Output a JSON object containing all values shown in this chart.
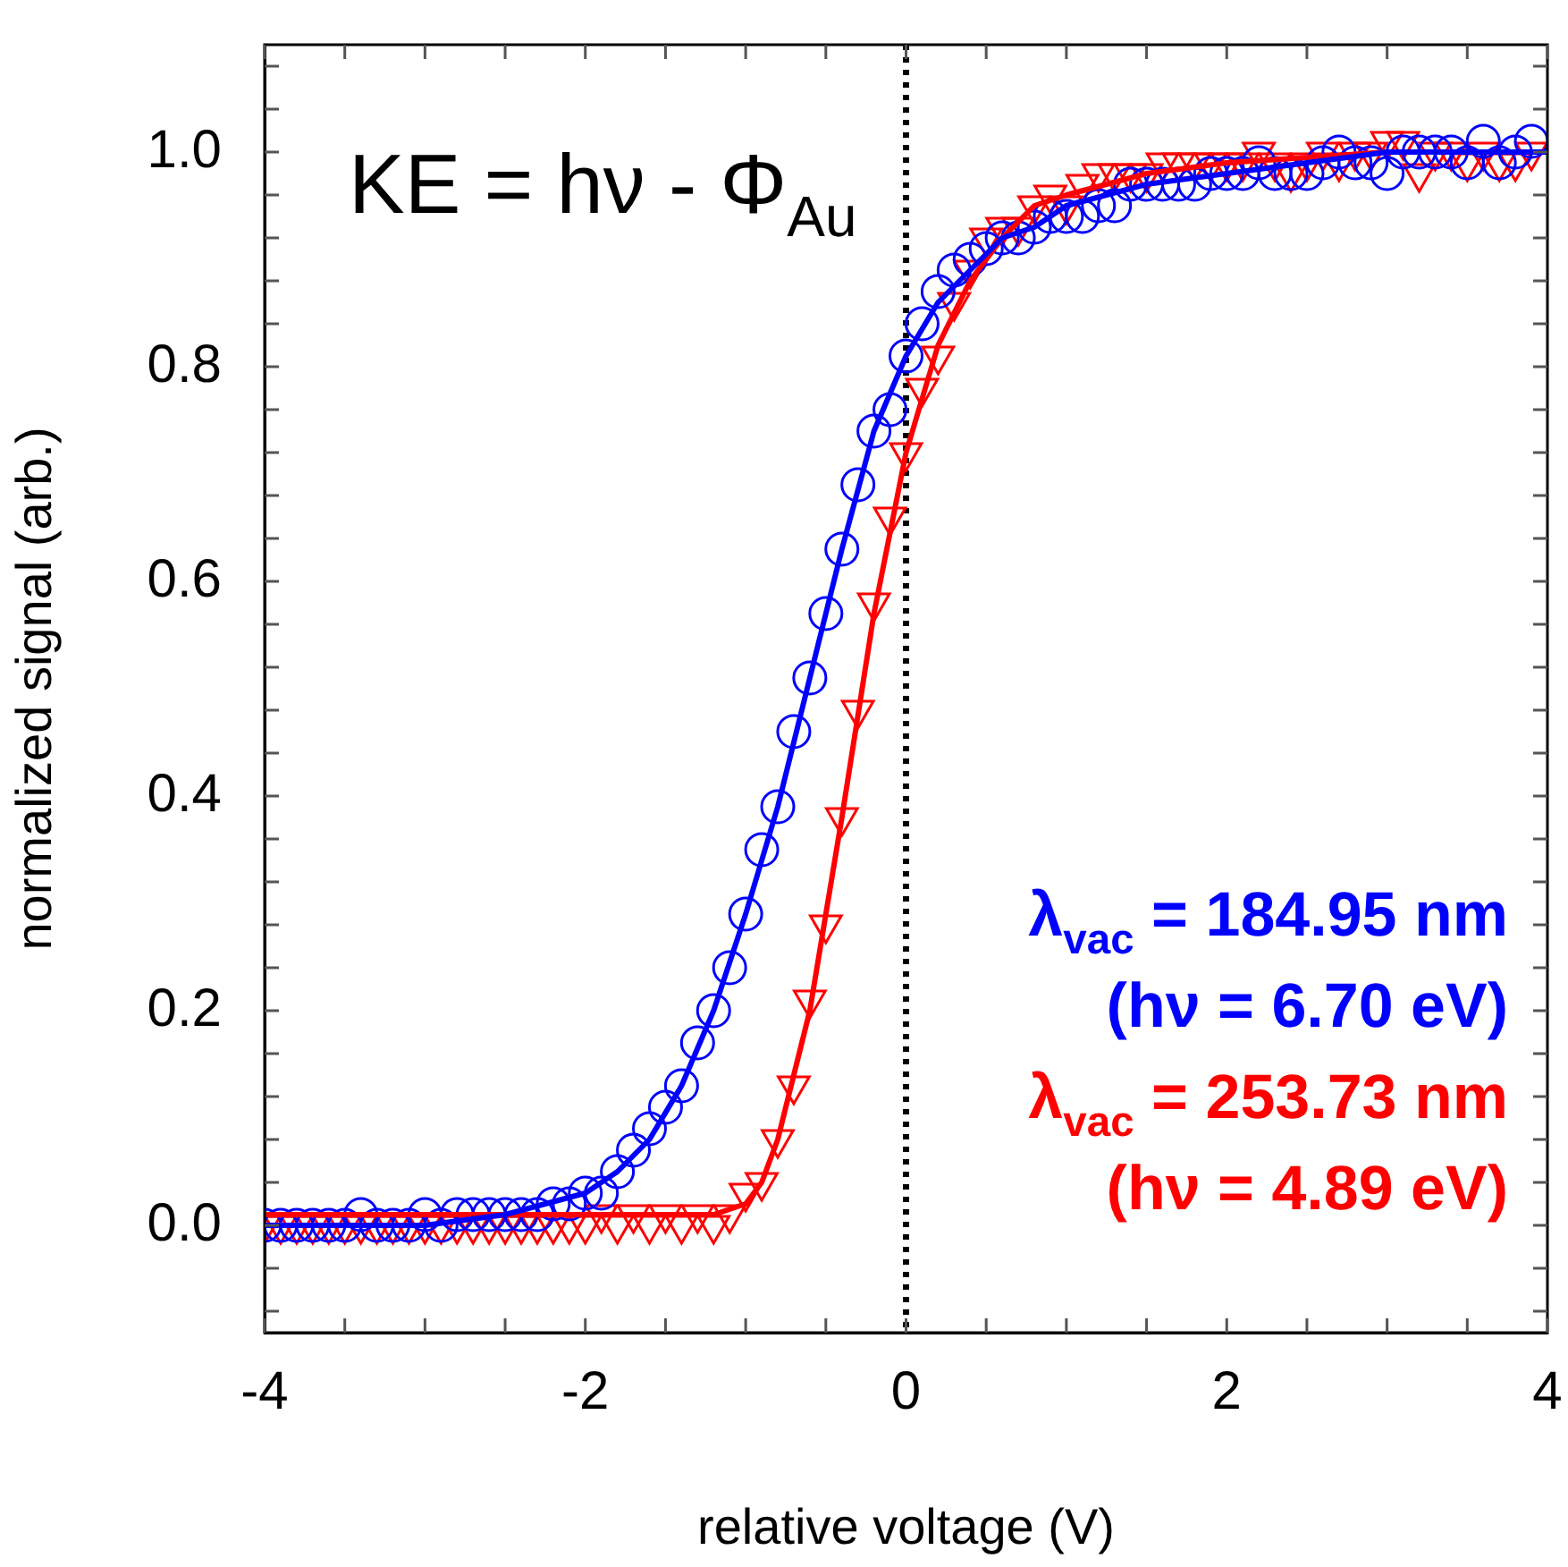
{
  "chart_data": {
    "type": "scatter",
    "xlabel": "relative voltage (V)",
    "ylabel": "normalized signal (arb.)",
    "annotations": [
      "KE = hν - Φ$_{Au}$"
    ],
    "xlim": [
      -4,
      4
    ],
    "xticks": [
      -4,
      {
        "value": -3.5,
        "label": null
      },
      {
        "value": -3,
        "label": null
      },
      {
        "value": -2.5,
        "label": null
      },
      -2,
      {
        "value": -1.5,
        "label": null
      },
      {
        "value": -1,
        "label": null
      },
      {
        "value": -0.5,
        "label": null
      },
      0,
      {
        "value": 0.5,
        "label": null
      },
      {
        "value": 1,
        "label": null
      },
      {
        "value": 1.5,
        "label": null
      },
      2,
      {
        "value": 2.5,
        "label": null
      },
      {
        "value": 3,
        "label": null
      },
      {
        "value": 3.5,
        "label": null
      },
      4
    ],
    "ylim": [
      -0.1,
      1.1
    ],
    "yticks": [
      {
        "value": -0.08,
        "label": null
      },
      {
        "value": -0.04,
        "label": null
      },
      {
        "value": 0,
        "label": "0.0"
      },
      {
        "value": 0.04,
        "label": null
      },
      {
        "value": 0.08,
        "label": null
      },
      {
        "value": 0.12,
        "label": null
      },
      {
        "value": 0.16,
        "label": null
      },
      0.2,
      {
        "value": 0.24,
        "label": null
      },
      {
        "value": 0.28,
        "label": null
      },
      {
        "value": 0.32,
        "label": null
      },
      {
        "value": 0.36,
        "label": null
      },
      0.4,
      {
        "value": 0.44,
        "label": null
      },
      {
        "value": 0.48,
        "label": null
      },
      {
        "value": 0.52,
        "label": null
      },
      {
        "value": 0.56,
        "label": null
      },
      0.6,
      {
        "value": 0.64,
        "label": null
      },
      {
        "value": 0.68,
        "label": null
      },
      {
        "value": 0.72,
        "label": null
      },
      {
        "value": 0.76,
        "label": null
      },
      0.8,
      {
        "value": 0.84,
        "label": null
      },
      {
        "value": 0.88,
        "label": null
      },
      {
        "value": 0.92,
        "label": null
      },
      {
        "value": 0.96,
        "label": null
      },
      {
        "value": 1,
        "label": "1.0"
      },
      {
        "value": 1.04,
        "label": null
      },
      {
        "value": 1.08,
        "label": null
      }
    ],
    "grid": false,
    "ref_lines": [
      {
        "axis": "x",
        "value": 0,
        "color": "#000000",
        "line_style": "dotted"
      }
    ],
    "series": [
      {
        "name": "λ$_{vac}$ = 184.95 nm (hν = 6.70 eV)",
        "type": "scatter",
        "marker": "circle",
        "color": "#0000ff",
        "x": [
          -4,
          -3.9,
          -3.8,
          -3.7,
          -3.6,
          -3.5,
          -3.4,
          -3.3,
          -3.2,
          -3.1,
          -3,
          -2.9,
          -2.8,
          -2.7,
          -2.6,
          -2.5,
          -2.4,
          -2.3,
          -2.2,
          -2.1,
          -2,
          -1.9,
          -1.8,
          -1.7,
          -1.6,
          -1.5,
          -1.4,
          -1.3,
          -1.2,
          -1.1,
          -1,
          -0.9,
          -0.8,
          -0.7,
          -0.6,
          -0.5,
          -0.4,
          -0.3,
          -0.2,
          -0.1,
          0,
          0.1,
          0.2,
          0.3,
          0.4,
          0.5,
          0.6,
          0.7,
          0.8,
          0.9,
          1,
          1.1,
          1.2,
          1.3,
          1.4,
          1.5,
          1.6,
          1.7,
          1.8,
          1.9,
          2,
          2.1,
          2.2,
          2.3,
          2.4,
          2.5,
          2.6,
          2.7,
          2.8,
          2.9,
          3,
          3.1,
          3.2,
          3.3,
          3.4,
          3.5,
          3.6,
          3.7,
          3.8,
          3.9
        ],
        "values": [
          0,
          0,
          0,
          0,
          0,
          0,
          0.01,
          0,
          0,
          0,
          0.01,
          0,
          0.01,
          0.01,
          0.01,
          0.01,
          0.01,
          0.01,
          0.02,
          0.02,
          0.03,
          0.03,
          0.05,
          0.07,
          0.09,
          0.11,
          0.13,
          0.17,
          0.2,
          0.24,
          0.29,
          0.35,
          0.39,
          0.46,
          0.51,
          0.57,
          0.63,
          0.69,
          0.74,
          0.76,
          0.81,
          0.84,
          0.87,
          0.89,
          0.9,
          0.91,
          0.92,
          0.92,
          0.93,
          0.94,
          0.94,
          0.94,
          0.95,
          0.95,
          0.97,
          0.97,
          0.97,
          0.97,
          0.97,
          0.98,
          0.98,
          0.98,
          0.99,
          0.98,
          0.98,
          0.98,
          0.99,
          1,
          0.99,
          0.99,
          0.98,
          1,
          1,
          1,
          1,
          0.99,
          1.01,
          0.99,
          1,
          1.01
        ]
      },
      {
        "name": "λ$_{vac}$ = 253.73 nm (hν = 4.89 eV)",
        "type": "scatter",
        "marker": "triangle",
        "color": "#ff0000",
        "x": [
          -4,
          -3.9,
          -3.8,
          -3.7,
          -3.6,
          -3.5,
          -3.4,
          -3.3,
          -3.2,
          -3.1,
          -3,
          -2.9,
          -2.8,
          -2.7,
          -2.6,
          -2.5,
          -2.4,
          -2.3,
          -2.2,
          -2.1,
          -2,
          -1.9,
          -1.8,
          -1.7,
          -1.6,
          -1.5,
          -1.4,
          -1.3,
          -1.2,
          -1.1,
          -1,
          -0.9,
          -0.8,
          -0.7,
          -0.6,
          -0.5,
          -0.4,
          -0.3,
          -0.2,
          -0.1,
          0,
          0.1,
          0.2,
          0.3,
          0.4,
          0.5,
          0.6,
          0.7,
          0.8,
          0.9,
          1,
          1.1,
          1.2,
          1.3,
          1.4,
          1.5,
          1.6,
          1.7,
          1.8,
          1.9,
          2,
          2.1,
          2.2,
          2.3,
          2.4,
          2.5,
          2.6,
          2.7,
          2.8,
          2.9,
          3,
          3.1,
          3.2,
          3.3,
          3.4,
          3.5,
          3.6,
          3.7,
          3.8,
          3.9
        ],
        "values": [
          0,
          0,
          0,
          0,
          0,
          0,
          0,
          0,
          0,
          0,
          0,
          0,
          0,
          0,
          0,
          0,
          0,
          0,
          0,
          0,
          0,
          0.01,
          0,
          0.01,
          0,
          0.01,
          0,
          0.01,
          0,
          0.01,
          0.03,
          0.04,
          0.08,
          0.13,
          0.21,
          0.28,
          0.38,
          0.48,
          0.58,
          0.66,
          0.72,
          0.78,
          0.81,
          0.86,
          0.89,
          0.92,
          0.93,
          0.93,
          0.95,
          0.96,
          0.95,
          0.97,
          0.98,
          0.98,
          0.98,
          0.98,
          0.99,
          0.99,
          0.99,
          0.99,
          0.99,
          0.99,
          1,
          0.99,
          0.98,
          0.99,
          1,
          0.99,
          1,
          1,
          1.01,
          1.01,
          0.98,
          1,
          1,
          0.99,
          1,
          0.99,
          0.99,
          1
        ]
      },
      {
        "type": "line",
        "color": "#0000ff",
        "x": [
          -4,
          -3,
          -2.5,
          -2,
          -1.8,
          -1.6,
          -1.4,
          -1.2,
          -1,
          -0.8,
          -0.6,
          -0.4,
          -0.2,
          0,
          0.2,
          0.4,
          0.6,
          0.8,
          1,
          1.5,
          2,
          2.5,
          3,
          4
        ],
        "values": [
          0,
          0,
          0.01,
          0.03,
          0.05,
          0.08,
          0.13,
          0.2,
          0.29,
          0.39,
          0.51,
          0.63,
          0.74,
          0.81,
          0.86,
          0.89,
          0.92,
          0.93,
          0.95,
          0.97,
          0.98,
          0.99,
          1,
          1
        ]
      },
      {
        "type": "line",
        "color": "#ff0000",
        "x": [
          -4,
          -2,
          -1.2,
          -1,
          -0.9,
          -0.8,
          -0.6,
          -0.4,
          -0.2,
          0,
          0.2,
          0.4,
          0.6,
          0.8,
          1,
          1.5,
          2,
          3,
          4
        ],
        "values": [
          0.01,
          0.01,
          0.01,
          0.02,
          0.04,
          0.08,
          0.2,
          0.38,
          0.57,
          0.72,
          0.82,
          0.88,
          0.92,
          0.95,
          0.96,
          0.98,
          0.99,
          1,
          1
        ]
      }
    ]
  }
}
